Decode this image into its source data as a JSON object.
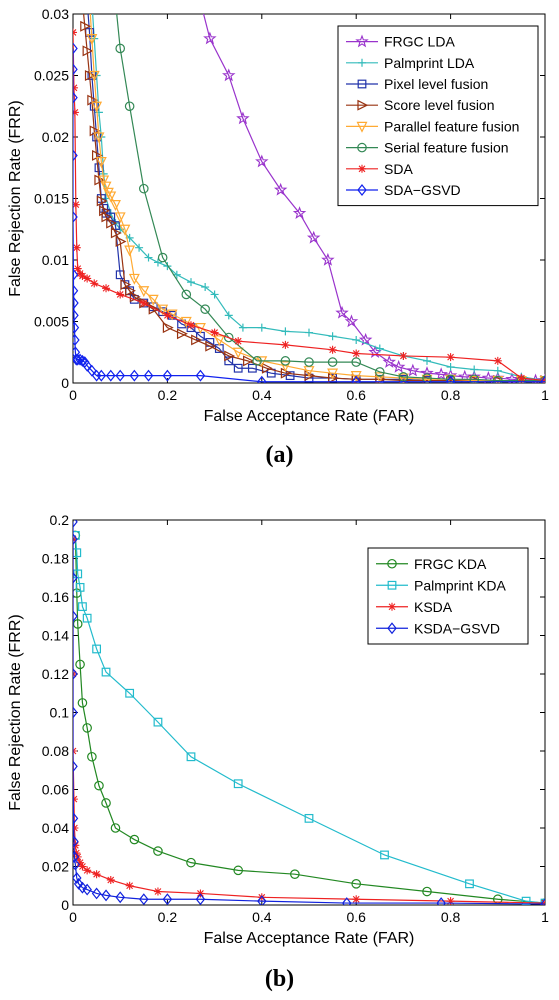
{
  "figure": {
    "panel_a_label": "(a)",
    "panel_b_label": "(b)"
  },
  "chart_data": [
    {
      "type": "line",
      "panel": "(a)",
      "xlabel": "False Acceptance Rate (FAR)",
      "ylabel": "False Rejection Rate (FRR)",
      "xlim": [
        0,
        1
      ],
      "ylim": [
        0,
        0.03
      ],
      "x_ticks": [
        "0",
        "0.2",
        "0.4",
        "0.6",
        "0.8",
        "1"
      ],
      "y_ticks": [
        "0",
        "0.005",
        "0.01",
        "0.015",
        "0.02",
        "0.025",
        "0.03"
      ],
      "grid": false,
      "legend_position": "top-right",
      "series": [
        {
          "name": "FRGC LDA",
          "color": "#9933cc",
          "marker": "star",
          "x": [
            0.27,
            0.29,
            0.33,
            0.36,
            0.4,
            0.44,
            0.48,
            0.51,
            0.54,
            0.57,
            0.59,
            0.62,
            0.64,
            0.67,
            0.69,
            0.72,
            0.75,
            0.78,
            0.8,
            0.83,
            0.85,
            0.88,
            0.9,
            0.93,
            0.95,
            0.98,
            1.0
          ],
          "y": [
            0.031,
            0.028,
            0.025,
            0.0215,
            0.018,
            0.0157,
            0.0138,
            0.0118,
            0.01,
            0.0057,
            0.005,
            0.0035,
            0.0025,
            0.0017,
            0.0013,
            0.001,
            0.0008,
            0.0007,
            0.0006,
            0.0005,
            0.0005,
            0.0004,
            0.0004,
            0.0003,
            0.0003,
            0.0002,
            0.0002
          ]
        },
        {
          "name": "Palmprint LDA",
          "color": "#33bbbb",
          "marker": "plus",
          "x": [
            0.04,
            0.045,
            0.05,
            0.055,
            0.06,
            0.065,
            0.07,
            0.08,
            0.09,
            0.1,
            0.12,
            0.14,
            0.16,
            0.18,
            0.2,
            0.22,
            0.25,
            0.28,
            0.3,
            0.33,
            0.36,
            0.4,
            0.45,
            0.5,
            0.55,
            0.6,
            0.65,
            0.7,
            0.75,
            0.8,
            0.85,
            0.9,
            0.95,
            1.0
          ],
          "y": [
            0.031,
            0.028,
            0.025,
            0.022,
            0.02,
            0.017,
            0.015,
            0.0138,
            0.013,
            0.0125,
            0.0118,
            0.011,
            0.0102,
            0.0098,
            0.0095,
            0.0088,
            0.0082,
            0.0078,
            0.0072,
            0.0055,
            0.0045,
            0.0045,
            0.0042,
            0.0041,
            0.0038,
            0.0035,
            0.0028,
            0.0022,
            0.0018,
            0.0013,
            0.0011,
            0.001,
            0.0005,
            0.0002
          ]
        },
        {
          "name": "Pixel level fusion",
          "color": "#2233aa",
          "marker": "square",
          "x": [
            0.03,
            0.035,
            0.04,
            0.045,
            0.05,
            0.055,
            0.06,
            0.065,
            0.07,
            0.08,
            0.09,
            0.1,
            0.11,
            0.12,
            0.13,
            0.15,
            0.17,
            0.19,
            0.21,
            0.23,
            0.25,
            0.27,
            0.29,
            0.31,
            0.33,
            0.35,
            0.38,
            0.42,
            0.46,
            0.5,
            0.55,
            0.6,
            0.65,
            0.7,
            0.75,
            0.8,
            0.85,
            0.9,
            0.95,
            1.0
          ],
          "y": [
            0.031,
            0.0285,
            0.025,
            0.0225,
            0.02,
            0.0175,
            0.015,
            0.0142,
            0.0138,
            0.0135,
            0.0128,
            0.0088,
            0.008,
            0.0075,
            0.0068,
            0.0065,
            0.0062,
            0.0058,
            0.0055,
            0.0048,
            0.0045,
            0.0038,
            0.0033,
            0.0028,
            0.0018,
            0.0012,
            0.0012,
            0.0008,
            0.0006,
            0.0004,
            0.0004,
            0.0003,
            0.0003,
            0.0003,
            0.0002,
            0.0002,
            0.0002,
            0.0002,
            0.0002,
            0.0002
          ]
        },
        {
          "name": "Score level fusion",
          "color": "#993311",
          "marker": "triangle-right",
          "x": [
            0.02,
            0.025,
            0.03,
            0.035,
            0.04,
            0.045,
            0.05,
            0.055,
            0.06,
            0.065,
            0.07,
            0.08,
            0.09,
            0.1,
            0.11,
            0.12,
            0.13,
            0.15,
            0.17,
            0.2,
            0.23,
            0.26,
            0.29,
            0.33,
            0.37,
            0.41,
            0.45,
            0.5,
            0.55,
            0.6,
            0.65,
            0.7,
            0.75,
            0.8,
            0.85,
            0.9,
            0.95,
            1.0
          ],
          "y": [
            0.031,
            0.029,
            0.027,
            0.025,
            0.023,
            0.0205,
            0.0185,
            0.0165,
            0.0148,
            0.014,
            0.0135,
            0.013,
            0.0122,
            0.0115,
            0.008,
            0.0075,
            0.007,
            0.0065,
            0.006,
            0.0045,
            0.004,
            0.0035,
            0.003,
            0.0022,
            0.0018,
            0.0012,
            0.0008,
            0.0006,
            0.0004,
            0.0003,
            0.0003,
            0.0002,
            0.0002,
            0.0002,
            0.0002,
            0.0002,
            0.0002,
            0.0002
          ]
        },
        {
          "name": "Parallel feature fusion",
          "color": "#ffaa33",
          "marker": "triangle-down",
          "x": [
            0.035,
            0.04,
            0.045,
            0.05,
            0.055,
            0.06,
            0.065,
            0.07,
            0.075,
            0.08,
            0.09,
            0.1,
            0.11,
            0.12,
            0.13,
            0.15,
            0.17,
            0.19,
            0.21,
            0.24,
            0.27,
            0.31,
            0.35,
            0.4,
            0.45,
            0.5,
            0.55,
            0.6,
            0.65,
            0.7,
            0.75,
            0.8,
            0.85,
            0.9,
            0.95,
            1.0
          ],
          "y": [
            0.031,
            0.028,
            0.025,
            0.0225,
            0.02,
            0.018,
            0.0165,
            0.016,
            0.0155,
            0.0152,
            0.0145,
            0.0135,
            0.0125,
            0.0108,
            0.0085,
            0.0075,
            0.0068,
            0.006,
            0.0056,
            0.005,
            0.0045,
            0.0035,
            0.0025,
            0.0018,
            0.0014,
            0.001,
            0.0008,
            0.0006,
            0.0005,
            0.0004,
            0.0003,
            0.0003,
            0.0002,
            0.0002,
            0.0002,
            0.0002
          ]
        },
        {
          "name": "Serial feature fusion",
          "color": "#338855",
          "marker": "circle",
          "x": [
            0.09,
            0.1,
            0.12,
            0.15,
            0.19,
            0.24,
            0.28,
            0.33,
            0.39,
            0.45,
            0.5,
            0.55,
            0.6,
            0.65,
            0.7,
            0.75,
            0.8,
            0.85,
            0.9,
            0.95,
            1.0
          ],
          "y": [
            0.031,
            0.0272,
            0.0225,
            0.0158,
            0.0102,
            0.0072,
            0.006,
            0.0037,
            0.0018,
            0.0018,
            0.0017,
            0.0017,
            0.0017,
            0.0009,
            0.0005,
            0.0004,
            0.0003,
            0.0003,
            0.0002,
            0.0002,
            0.0002
          ]
        },
        {
          "name": "SDA",
          "color": "#ee2222",
          "marker": "asterisk",
          "x": [
            0.0,
            0.002,
            0.004,
            0.006,
            0.008,
            0.01,
            0.015,
            0.02,
            0.03,
            0.045,
            0.07,
            0.1,
            0.15,
            0.2,
            0.25,
            0.3,
            0.35,
            0.45,
            0.55,
            0.6,
            0.7,
            0.8,
            0.9,
            0.95,
            1.0
          ],
          "y": [
            0.0285,
            0.024,
            0.022,
            0.0145,
            0.011,
            0.0093,
            0.0089,
            0.0087,
            0.0085,
            0.0081,
            0.0077,
            0.0072,
            0.0065,
            0.0055,
            0.0047,
            0.0041,
            0.0034,
            0.0031,
            0.0027,
            0.0024,
            0.0022,
            0.0021,
            0.0018,
            0.0004,
            0.0002
          ]
        },
        {
          "name": "SDA−GSVD",
          "color": "#1122ee",
          "marker": "diamond",
          "x": [
            0.0,
            0.0,
            0.0,
            0.0,
            0.0,
            0.001,
            0.001,
            0.002,
            0.002,
            0.003,
            0.004,
            0.005,
            0.007,
            0.01,
            0.015,
            0.02,
            0.025,
            0.03,
            0.04,
            0.05,
            0.06,
            0.08,
            0.1,
            0.13,
            0.16,
            0.2,
            0.27,
            0.4,
            0.6,
            0.8,
            1.0
          ],
          "y": [
            0.0272,
            0.0255,
            0.0232,
            0.0185,
            0.0135,
            0.0088,
            0.0075,
            0.0065,
            0.0055,
            0.0045,
            0.0035,
            0.0025,
            0.0019,
            0.0019,
            0.0019,
            0.0018,
            0.0017,
            0.0014,
            0.001,
            0.0006,
            0.0006,
            0.0006,
            0.0006,
            0.0006,
            0.0006,
            0.0006,
            0.0006,
            0.0001,
            0.0001,
            0.0001,
            0.0001
          ]
        }
      ]
    },
    {
      "type": "line",
      "panel": "(b)",
      "xlabel": "False Acceptance Rate (FAR)",
      "ylabel": "False Rejection Rate (FRR)",
      "xlim": [
        0,
        1
      ],
      "ylim": [
        0,
        0.2
      ],
      "x_ticks": [
        "0",
        "0.2",
        "0.4",
        "0.6",
        "0.8",
        "1"
      ],
      "y_ticks": [
        "0",
        "0.02",
        "0.04",
        "0.06",
        "0.08",
        "0.1",
        "0.12",
        "0.14",
        "0.16",
        "0.18",
        "0.2"
      ],
      "grid": false,
      "legend_position": "top-right",
      "series": [
        {
          "name": "FRGC KDA",
          "color": "#228822",
          "marker": "circle",
          "x": [
            0.005,
            0.008,
            0.01,
            0.015,
            0.02,
            0.03,
            0.04,
            0.055,
            0.07,
            0.09,
            0.13,
            0.18,
            0.25,
            0.35,
            0.47,
            0.6,
            0.75,
            0.9,
            1.0
          ],
          "y": [
            0.192,
            0.162,
            0.146,
            0.125,
            0.105,
            0.092,
            0.077,
            0.062,
            0.053,
            0.04,
            0.034,
            0.028,
            0.022,
            0.018,
            0.016,
            0.011,
            0.007,
            0.003,
            0.001
          ]
        },
        {
          "name": "Palmprint KDA",
          "color": "#22bbcc",
          "marker": "square",
          "x": [
            0.005,
            0.008,
            0.01,
            0.015,
            0.02,
            0.03,
            0.05,
            0.07,
            0.12,
            0.18,
            0.25,
            0.35,
            0.5,
            0.66,
            0.84,
            0.96,
            1.0
          ],
          "y": [
            0.192,
            0.183,
            0.172,
            0.165,
            0.155,
            0.149,
            0.133,
            0.121,
            0.11,
            0.095,
            0.077,
            0.063,
            0.045,
            0.026,
            0.011,
            0.002,
            0.001
          ]
        },
        {
          "name": "KSDA",
          "color": "#ee2222",
          "marker": "asterisk",
          "x": [
            0.0,
            0.0,
            0.0,
            0.002,
            0.003,
            0.005,
            0.007,
            0.01,
            0.015,
            0.02,
            0.03,
            0.05,
            0.08,
            0.12,
            0.18,
            0.27,
            0.4,
            0.6,
            0.8,
            1.0
          ],
          "y": [
            0.19,
            0.12,
            0.08,
            0.055,
            0.04,
            0.031,
            0.027,
            0.025,
            0.022,
            0.02,
            0.018,
            0.016,
            0.013,
            0.01,
            0.007,
            0.006,
            0.004,
            0.003,
            0.002,
            0.001
          ]
        },
        {
          "name": "KSDA−GSVD",
          "color": "#1122dd",
          "marker": "diamond",
          "x": [
            0.0,
            0.0,
            0.0,
            0.0,
            0.0,
            0.0,
            0.0,
            0.001,
            0.002,
            0.003,
            0.005,
            0.008,
            0.012,
            0.02,
            0.03,
            0.05,
            0.07,
            0.1,
            0.15,
            0.2,
            0.27,
            0.4,
            0.58,
            0.78,
            1.0
          ],
          "y": [
            0.199,
            0.19,
            0.17,
            0.15,
            0.12,
            0.1,
            0.072,
            0.045,
            0.033,
            0.025,
            0.021,
            0.014,
            0.011,
            0.009,
            0.008,
            0.006,
            0.005,
            0.004,
            0.003,
            0.003,
            0.003,
            0.002,
            0.001,
            0.001,
            0.0005
          ]
        }
      ]
    }
  ]
}
